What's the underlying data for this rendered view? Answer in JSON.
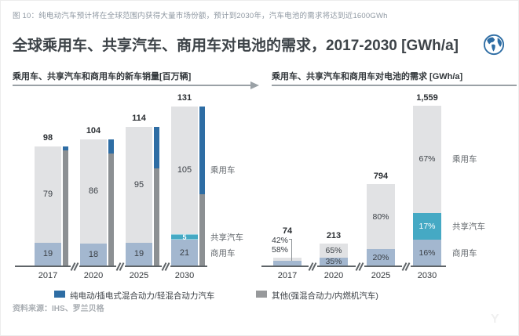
{
  "figure_caption": "图 10：纯电动汽车预计将在全球范围内获得大量市场份额，预计到2030年，汽车电池的需求将达到近1600GWh",
  "title": "全球乘用车、共享汽车、商用车对电池的需求，2017-2030 [GWh/a]",
  "source_line": "资料来源：IHS、罗兰贝格",
  "legend": {
    "electrified_label": "纯电动/插电式混合动力/轻混合动力汽车",
    "other_label": "其他(强混合动力/内燃机汽车)"
  },
  "watermark": "Y",
  "colors": {
    "passenger": "#e1e2e4",
    "shared": "#45a9c4",
    "shared_edge": "#8ed0e0",
    "commercial": "#a3b7cf",
    "electrified_blue": "#2e6da4",
    "companion_gray": "#8c9093",
    "legend_gray": "#97999b",
    "axis": "#5f6468",
    "rule_gray": "#9aa1a6",
    "label_dark": "#3b4046",
    "side_label": "#64696e"
  },
  "chart_data": [
    {
      "type": "bar",
      "subtype": "stacked-with-companion-share-bar",
      "title": "乘用车、共享汽车和商用车的新车销量[百万辆]",
      "unit": "百万辆",
      "categories": [
        "2017",
        "2020",
        "2025",
        "2030"
      ],
      "series": [
        {
          "name": "商用车",
          "key": "commercial",
          "values": [
            19,
            18,
            19,
            21
          ]
        },
        {
          "name": "共享汽车",
          "key": "shared",
          "values": [
            0,
            0,
            0,
            5
          ]
        },
        {
          "name": "乘用车",
          "key": "passenger",
          "values": [
            79,
            86,
            95,
            105
          ]
        }
      ],
      "totals": [
        98,
        104,
        114,
        131
      ],
      "totals_display": [
        "98",
        "104",
        "114",
        "131"
      ],
      "companion_bars": {
        "meaning_blue": "纯电动/插电式混合动力/轻混合动力汽车",
        "meaning_gray": "其他(强混合动力/内燃机汽车)",
        "blue_fraction_estimated": [
          0.03,
          0.11,
          0.3,
          0.55
        ]
      },
      "axis_breaks": true,
      "ylim": [
        0,
        131
      ],
      "legend_position": "bottom"
    },
    {
      "type": "bar",
      "subtype": "stacked-percent",
      "title": "乘用车、共享汽车和商用车对电池的需求 [GWh/a]",
      "unit": "GWh/a",
      "categories": [
        "2017",
        "2020",
        "2025",
        "2030"
      ],
      "totals": [
        74,
        213,
        794,
        1559
      ],
      "totals_display": [
        "74",
        "213",
        "794",
        "1,559"
      ],
      "series": [
        {
          "name": "商用车",
          "key": "commercial",
          "pct": [
            58,
            35,
            20,
            16
          ]
        },
        {
          "name": "共享汽车",
          "key": "shared",
          "pct": [
            0,
            0,
            0,
            17
          ]
        },
        {
          "name": "乘用车",
          "key": "passenger",
          "pct": [
            42,
            65,
            80,
            67
          ]
        }
      ],
      "pct_labels_outside": [
        true,
        false,
        false,
        false
      ],
      "axis_breaks": true,
      "ylim": [
        0,
        1559
      ]
    }
  ]
}
